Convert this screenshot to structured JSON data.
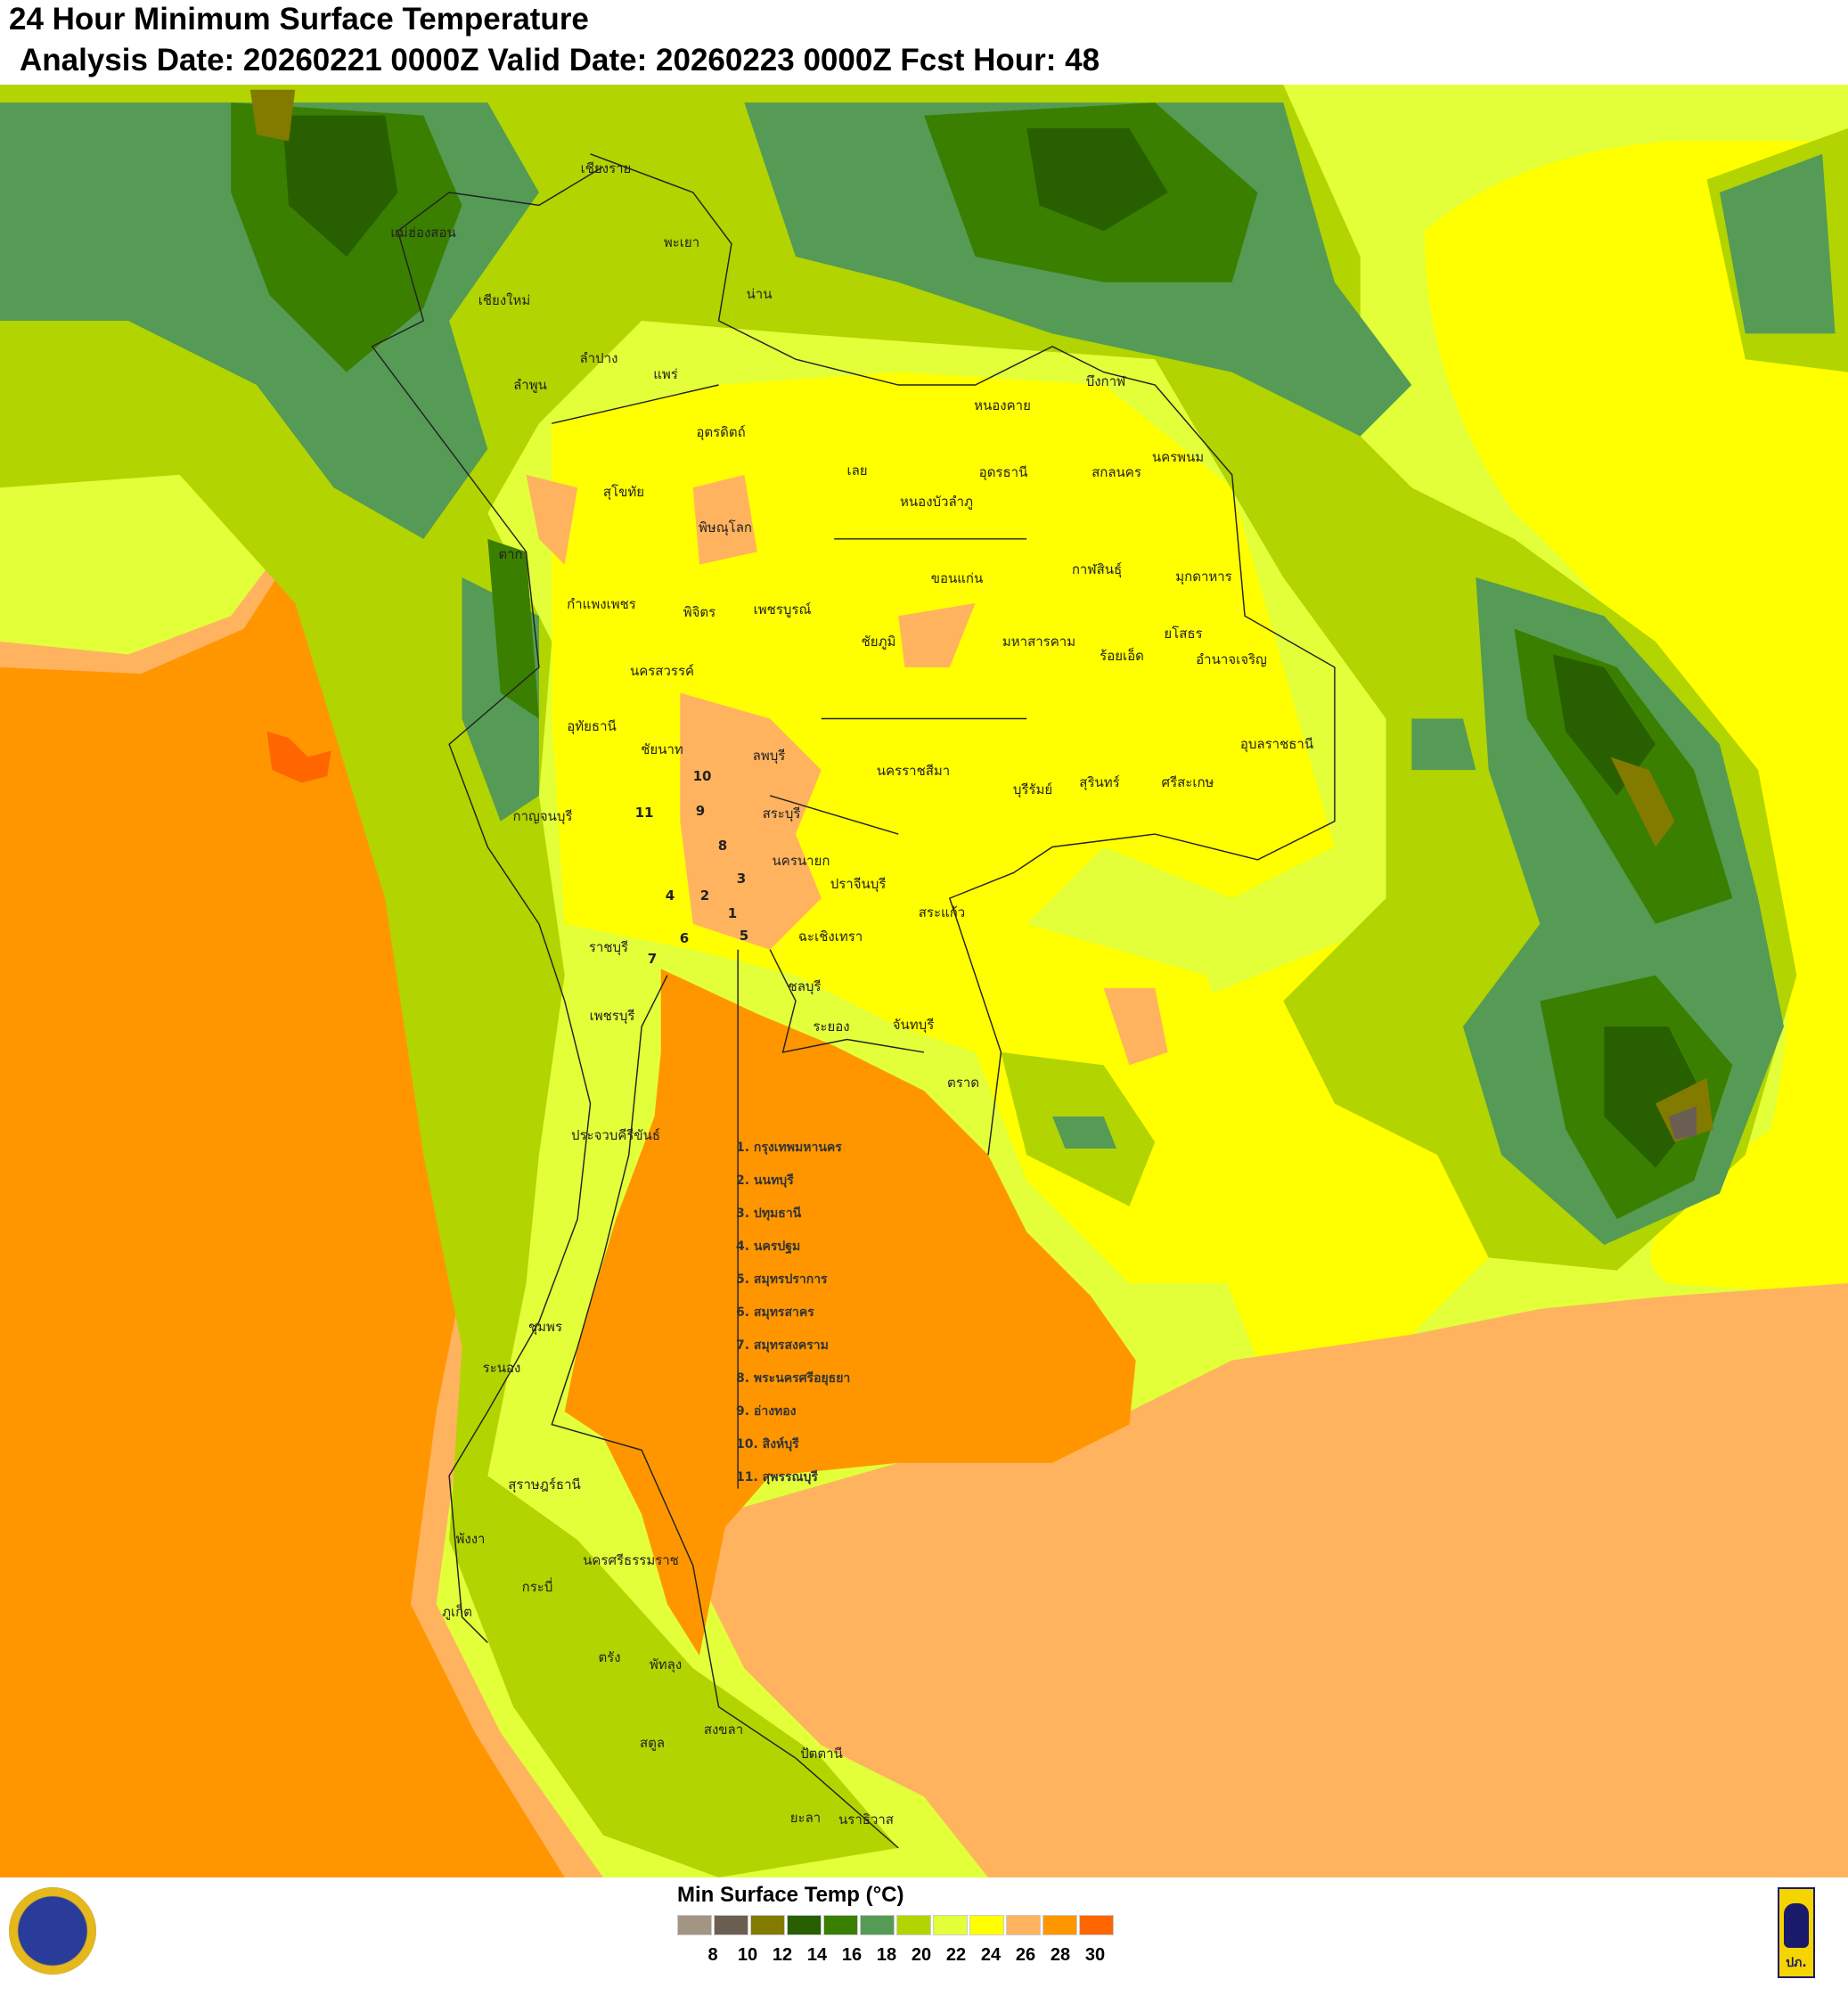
{
  "header": {
    "title": "24 Hour Minimum Surface Temperature",
    "subtitle": "Analysis Date: 20260221 0000Z Valid Date: 20260223 0000Z Fcst Hour: 48"
  },
  "legend": {
    "title": "Min Surface Temp (°C)",
    "colors": [
      "#a39583",
      "#6a5f52",
      "#837a00",
      "#285f00",
      "#3a7f00",
      "#559b55",
      "#b2d400",
      "#e2ff3a",
      "#ffff00",
      "#ffb35e",
      "#ff9600",
      "#ff6600"
    ],
    "ticks": [
      "8",
      "10",
      "12",
      "14",
      "16",
      "18",
      "20",
      "22",
      "24",
      "26",
      "28",
      "30"
    ]
  },
  "provinces": [
    "เชียงราย",
    "แม่ฮ่องสอน",
    "เชียงใหม่",
    "พะเยา",
    "น่าน",
    "ลำปาง",
    "แพร่",
    "ลำพูน",
    "อุตรดิตถ์",
    "บึงกาฬ",
    "หนองคาย",
    "นครพนม",
    "สกลนคร",
    "อุดรธานี",
    "เลย",
    "หนองบัวลำภู",
    "สุโขทัย",
    "พิษณุโลก",
    "ตาก",
    "กาฬสินธุ์",
    "มุกดาหาร",
    "ขอนแก่น",
    "กำแพงเพชร",
    "พิจิตร",
    "เพชรบูรณ์",
    "ชัยภูมิ",
    "มหาสารคาม",
    "ร้อยเอ็ด",
    "ยโสธร",
    "อำนาจเจริญ",
    "นครสวรรค์",
    "อุทัยธานี",
    "ชัยนาท",
    "ลพบุรี",
    "อุบลราชธานี",
    "นครราชสีมา",
    "บุรีรัมย์",
    "สุรินทร์",
    "ศรีสะเกษ",
    "กาญจนบุรี",
    "สระบุรี",
    "นครนายก",
    "ปราจีนบุรี",
    "สระแก้ว",
    "ราชบุรี",
    "ฉะเชิงเทรา",
    "ชลบุรี",
    "เพชรบุรี",
    "ระยอง",
    "จันทบุรี",
    "ตราด",
    "ประจวบคีรีขันธ์",
    "ชุมพร",
    "ระนอง",
    "สุราษฎร์ธานี",
    "นครศรีธรรมราช",
    "พังงา",
    "กระบี่",
    "ภูเก็ต",
    "ตรัง",
    "พัทลุง",
    "สตูล",
    "สงขลา",
    "ปัตตานี",
    "ยะลา",
    "นราธิวาส"
  ],
  "map_numbers": [
    "10",
    "9",
    "11",
    "8",
    "3",
    "4",
    "2",
    "1",
    "5",
    "6",
    "7"
  ],
  "numbered_key": [
    "1.  กรุงเทพมหานคร",
    "2.  นนทบุรี",
    "3.  ปทุมธานี",
    "4.  นครปฐม",
    "5.  สมุทรปราการ",
    "6.  สมุทรสาคร",
    "7.  สมุทรสงคราม",
    "8.  พระนครศรีอยุธยา",
    "9.  อ่างทอง",
    "10. สิงห์บุรี",
    "11. สุพรรณบุรี"
  ],
  "logos": {
    "right_text": "ปภ."
  }
}
